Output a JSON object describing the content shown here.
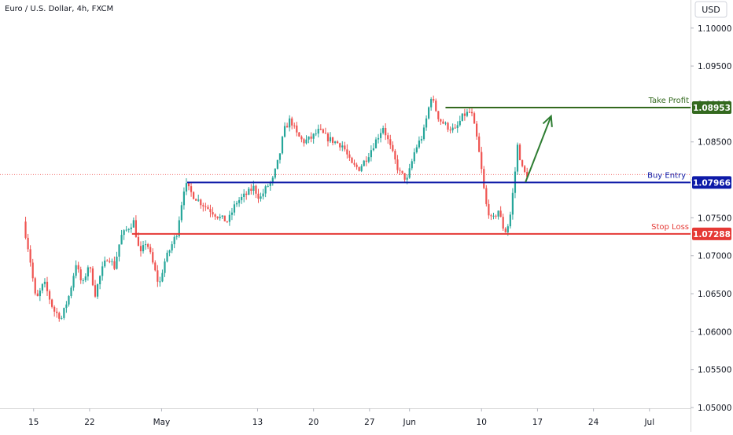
{
  "header": {
    "symbol_title": "Euro / U.S. Dollar, 4h, FXCM"
  },
  "price_axis": {
    "currency": "USD",
    "ticks": [
      "1.10000",
      "1.09500",
      "1.09000",
      "1.08500",
      "1.08000",
      "1.07500",
      "1.07000",
      "1.06500",
      "1.06000",
      "1.05500",
      "1.05000"
    ]
  },
  "time_axis": {
    "ticks": [
      {
        "label": "15",
        "day": 15
      },
      {
        "label": "22",
        "day": 22
      },
      {
        "label": "May",
        "day": 31
      },
      {
        "label": "13",
        "day": 43
      },
      {
        "label": "20",
        "day": 50
      },
      {
        "label": "27",
        "day": 57
      },
      {
        "label": "Jun",
        "day": 62
      },
      {
        "label": "10",
        "day": 71
      },
      {
        "label": "17",
        "day": 78
      },
      {
        "label": "24",
        "day": 85
      },
      {
        "label": "Jul",
        "day": 92
      }
    ]
  },
  "levels": {
    "take_profit": {
      "label": "Take Profit",
      "price_label": "1.08953",
      "price": 1.08953,
      "start_day": 66.5,
      "color": "#33691e"
    },
    "buy_entry": {
      "label": "Buy Entry",
      "price_label": "1.07966",
      "price": 1.07966,
      "start_day": 34.2,
      "color": "#0d1aa8"
    },
    "stop_loss": {
      "label": "Stop Loss",
      "price_label": "1.07288",
      "price": 1.07288,
      "start_day": 27.3,
      "color": "#e53935"
    }
  },
  "colors": {
    "up": "#26a69a",
    "down": "#ef5350",
    "arrow": "#2e7d32"
  },
  "chart_data": {
    "type": "candlestick",
    "title": "Euro / U.S. Dollar, 4h, FXCM",
    "xlabel": "",
    "ylabel": "",
    "ylim": [
      1.0499,
      1.1037
    ],
    "last_price": 1.0807,
    "arrow": {
      "from": {
        "day": 76.5,
        "price": 1.0797
      },
      "to": {
        "day": 79.7,
        "price": 1.0884
      }
    },
    "key_points": [
      {
        "day": 14.0,
        "price": 1.0745
      },
      {
        "day": 14.8,
        "price": 1.07
      },
      {
        "day": 15.6,
        "price": 1.064
      },
      {
        "day": 16.6,
        "price": 1.0665
      },
      {
        "day": 17.8,
        "price": 1.0628
      },
      {
        "day": 18.8,
        "price": 1.0618
      },
      {
        "day": 19.8,
        "price": 1.065
      },
      {
        "day": 20.6,
        "price": 1.069
      },
      {
        "day": 21.4,
        "price": 1.066
      },
      {
        "day": 22.2,
        "price": 1.069
      },
      {
        "day": 23.0,
        "price": 1.065
      },
      {
        "day": 23.8,
        "price": 1.068
      },
      {
        "day": 24.6,
        "price": 1.07
      },
      {
        "day": 25.4,
        "price": 1.0685
      },
      {
        "day": 26.2,
        "price": 1.0725
      },
      {
        "day": 27.0,
        "price": 1.0735
      },
      {
        "day": 27.8,
        "price": 1.0745
      },
      {
        "day": 28.6,
        "price": 1.07
      },
      {
        "day": 29.4,
        "price": 1.072
      },
      {
        "day": 30.2,
        "price": 1.069
      },
      {
        "day": 31.0,
        "price": 1.066
      },
      {
        "day": 31.6,
        "price": 1.069
      },
      {
        "day": 32.4,
        "price": 1.071
      },
      {
        "day": 33.2,
        "price": 1.073
      },
      {
        "day": 34.2,
        "price": 1.0795
      },
      {
        "day": 35.2,
        "price": 1.078
      },
      {
        "day": 36.2,
        "price": 1.077
      },
      {
        "day": 37.4,
        "price": 1.076
      },
      {
        "day": 38.6,
        "price": 1.075
      },
      {
        "day": 39.6,
        "price": 1.0745
      },
      {
        "day": 40.6,
        "price": 1.077
      },
      {
        "day": 41.8,
        "price": 1.078
      },
      {
        "day": 42.8,
        "price": 1.079
      },
      {
        "day": 43.6,
        "price": 1.0775
      },
      {
        "day": 44.4,
        "price": 1.079
      },
      {
        "day": 45.2,
        "price": 1.08
      },
      {
        "day": 46.0,
        "price": 1.083
      },
      {
        "day": 46.6,
        "price": 1.0865
      },
      {
        "day": 47.4,
        "price": 1.088
      },
      {
        "day": 48.2,
        "price": 1.086
      },
      {
        "day": 49.0,
        "price": 1.085
      },
      {
        "day": 50.0,
        "price": 1.0855
      },
      {
        "day": 51.0,
        "price": 1.0865
      },
      {
        "day": 52.0,
        "price": 1.0855
      },
      {
        "day": 53.0,
        "price": 1.085
      },
      {
        "day": 54.0,
        "price": 1.0845
      },
      {
        "day": 55.0,
        "price": 1.082
      },
      {
        "day": 56.0,
        "price": 1.0815
      },
      {
        "day": 57.0,
        "price": 1.083
      },
      {
        "day": 58.0,
        "price": 1.085
      },
      {
        "day": 59.0,
        "price": 1.087
      },
      {
        "day": 60.0,
        "price": 1.084
      },
      {
        "day": 61.0,
        "price": 1.081
      },
      {
        "day": 62.0,
        "price": 1.08
      },
      {
        "day": 63.0,
        "price": 1.084
      },
      {
        "day": 64.0,
        "price": 1.086
      },
      {
        "day": 65.0,
        "price": 1.091
      },
      {
        "day": 66.0,
        "price": 1.088
      },
      {
        "day": 67.0,
        "price": 1.087
      },
      {
        "day": 68.0,
        "price": 1.0865
      },
      {
        "day": 69.0,
        "price": 1.0885
      },
      {
        "day": 70.0,
        "price": 1.089
      },
      {
        "day": 70.8,
        "price": 1.085
      },
      {
        "day": 71.4,
        "price": 1.0805
      },
      {
        "day": 71.8,
        "price": 1.077
      },
      {
        "day": 72.6,
        "price": 1.0745
      },
      {
        "day": 73.4,
        "price": 1.076
      },
      {
        "day": 74.2,
        "price": 1.073
      },
      {
        "day": 74.8,
        "price": 1.0745
      },
      {
        "day": 75.4,
        "price": 1.08
      },
      {
        "day": 75.8,
        "price": 1.0845
      },
      {
        "day": 76.4,
        "price": 1.0815
      },
      {
        "day": 76.8,
        "price": 1.0807
      }
    ]
  }
}
